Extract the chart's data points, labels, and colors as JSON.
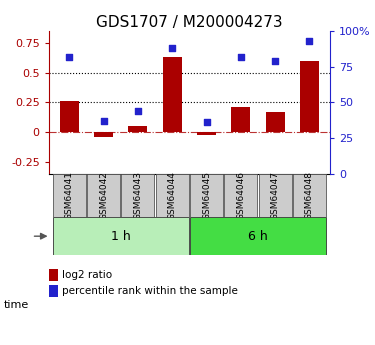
{
  "title": "GDS1707 / M200004273",
  "samples": [
    "GSM64041",
    "GSM64042",
    "GSM64043",
    "GSM64044",
    "GSM64045",
    "GSM64046",
    "GSM64047",
    "GSM64048"
  ],
  "log2_ratio": [
    0.26,
    -0.04,
    0.05,
    0.63,
    -0.02,
    0.21,
    0.17,
    0.6
  ],
  "percentile_rank": [
    82,
    37,
    44,
    88,
    36,
    82,
    79,
    93
  ],
  "groups": [
    {
      "label": "1 h",
      "indices": [
        0,
        1,
        2,
        3
      ]
    },
    {
      "label": "6 h",
      "indices": [
        4,
        5,
        6,
        7
      ]
    }
  ],
  "bar_color": "#AA0000",
  "dot_color": "#2222CC",
  "ylim_left": [
    -0.35,
    0.85
  ],
  "ylim_right": [
    0,
    100
  ],
  "yticks_left": [
    -0.25,
    0,
    0.25,
    0.5,
    0.75
  ],
  "yticks_right": [
    0,
    25,
    50,
    75,
    100
  ],
  "hline_y_left": [
    0.25,
    0.5
  ],
  "sample_bg": "#cccccc",
  "group_color_1h": "#b8eeb8",
  "group_color_6h": "#44dd44",
  "title_fontsize": 11,
  "tick_fontsize": 8,
  "legend_items": [
    "log2 ratio",
    "percentile rank within the sample"
  ]
}
